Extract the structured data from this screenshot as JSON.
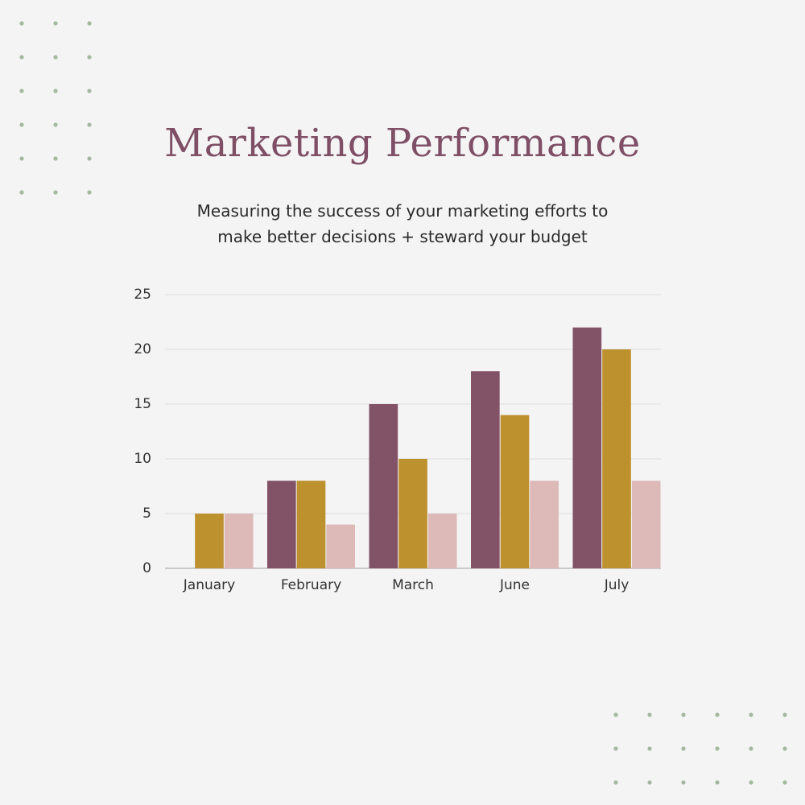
{
  "chart_data": {
    "type": "bar",
    "title": "Marketing Performance",
    "subtitle": "Measuring the success of your marketing efforts to make better decisions + steward your budget",
    "categories": [
      "January",
      "February",
      "March",
      "June",
      "July"
    ],
    "series": [
      {
        "color": "#825267",
        "values": [
          0,
          8,
          15,
          18,
          22
        ]
      },
      {
        "color": "#be912f",
        "values": [
          5,
          8,
          10,
          14,
          20
        ]
      },
      {
        "color": "#ddb9b8",
        "values": [
          5,
          4,
          5,
          8,
          8
        ]
      }
    ],
    "ylim": [
      0,
      25
    ],
    "yticks": [
      0,
      5,
      10,
      15,
      20,
      25
    ],
    "grid": true
  }
}
